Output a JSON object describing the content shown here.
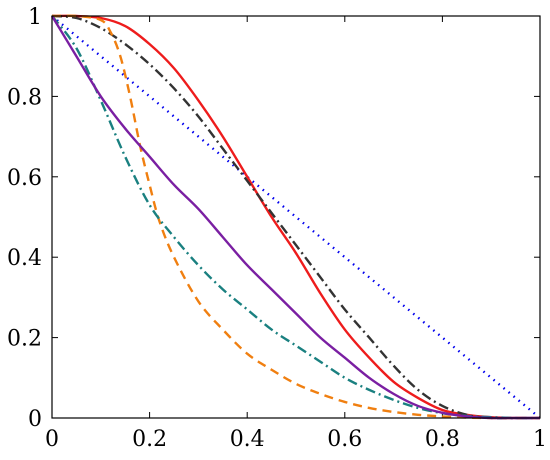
{
  "chart_data": {
    "type": "line",
    "title": "",
    "xlabel": "",
    "ylabel": "",
    "xlim": [
      0,
      1
    ],
    "ylim": [
      0,
      1
    ],
    "grid": false,
    "legend": "none",
    "xticks": [
      "0",
      "0.2",
      "0.4",
      "0.6",
      "0.8",
      "1"
    ],
    "yticks": [
      "0",
      "0.2",
      "0.4",
      "0.6",
      "0.8",
      "1"
    ],
    "series": [
      {
        "color": "#0000ee",
        "style": "dotted",
        "x": [
          0,
          1
        ],
        "y": [
          1,
          0
        ]
      },
      {
        "color": "#ee1c1c",
        "style": "solid",
        "x": [
          0,
          0.05,
          0.1,
          0.15,
          0.2,
          0.25,
          0.3,
          0.35,
          0.4,
          0.45,
          0.5,
          0.55,
          0.6,
          0.65,
          0.7,
          0.75,
          0.8,
          0.85,
          0.9,
          0.95,
          1
        ],
        "y": [
          1,
          1,
          0.995,
          0.975,
          0.93,
          0.87,
          0.79,
          0.7,
          0.6,
          0.5,
          0.41,
          0.31,
          0.22,
          0.15,
          0.09,
          0.05,
          0.02,
          0.008,
          0.002,
          0,
          0
        ]
      },
      {
        "color": "#333333",
        "style": "dash-dot",
        "x": [
          0,
          0.05,
          0.1,
          0.15,
          0.2,
          0.25,
          0.3,
          0.35,
          0.4,
          0.45,
          0.5,
          0.55,
          0.6,
          0.65,
          0.7,
          0.75,
          0.8,
          0.85,
          0.9,
          1
        ],
        "y": [
          1,
          0.995,
          0.97,
          0.93,
          0.88,
          0.82,
          0.75,
          0.67,
          0.59,
          0.51,
          0.43,
          0.35,
          0.27,
          0.2,
          0.13,
          0.07,
          0.03,
          0.008,
          0,
          0
        ]
      },
      {
        "color": "#f07f10",
        "style": "dashed",
        "x": [
          0,
          0.05,
          0.1,
          0.12,
          0.14,
          0.16,
          0.18,
          0.2,
          0.22,
          0.25,
          0.3,
          0.35,
          0.4,
          0.45,
          0.5,
          0.55,
          0.6,
          0.65,
          0.7,
          0.75,
          0.8,
          0.85,
          0.9,
          0.95,
          1
        ],
        "y": [
          1,
          1,
          0.99,
          0.96,
          0.9,
          0.8,
          0.68,
          0.58,
          0.49,
          0.4,
          0.29,
          0.22,
          0.16,
          0.12,
          0.085,
          0.06,
          0.04,
          0.025,
          0.015,
          0.008,
          0.004,
          0.001,
          0,
          0,
          0
        ]
      },
      {
        "color": "#1a8080",
        "style": "dash-dot",
        "x": [
          0,
          0.05,
          0.1,
          0.15,
          0.2,
          0.25,
          0.3,
          0.35,
          0.4,
          0.45,
          0.5,
          0.55,
          0.6,
          0.65,
          0.7,
          0.75,
          0.8,
          0.85,
          0.9,
          0.95,
          1
        ],
        "y": [
          1,
          0.92,
          0.79,
          0.65,
          0.53,
          0.45,
          0.38,
          0.32,
          0.27,
          0.22,
          0.18,
          0.14,
          0.1,
          0.07,
          0.045,
          0.025,
          0.012,
          0.005,
          0.002,
          0,
          0
        ]
      },
      {
        "color": "#7a1fa2",
        "style": "solid",
        "x": [
          0,
          0.05,
          0.1,
          0.15,
          0.2,
          0.25,
          0.3,
          0.35,
          0.4,
          0.45,
          0.5,
          0.55,
          0.6,
          0.65,
          0.7,
          0.75,
          0.8,
          0.85,
          0.9,
          0.95,
          1
        ],
        "y": [
          1,
          0.9,
          0.8,
          0.72,
          0.65,
          0.58,
          0.52,
          0.45,
          0.38,
          0.32,
          0.26,
          0.2,
          0.15,
          0.1,
          0.06,
          0.03,
          0.013,
          0.004,
          0,
          0,
          0
        ]
      }
    ]
  }
}
